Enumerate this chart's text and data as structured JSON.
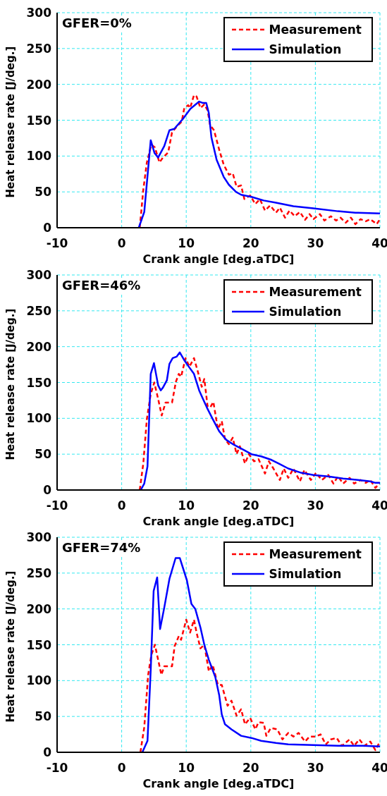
{
  "chart_data": [
    {
      "type": "line",
      "xlabel": "Crank angle [deg.aTDC]",
      "ylabel": "Heat release rate [J/deg.]",
      "xlim": [
        -10,
        40
      ],
      "xticks": [
        -10,
        0,
        10,
        20,
        30,
        40
      ],
      "ylim": [
        0,
        300
      ],
      "yticks": [
        0,
        50,
        100,
        150,
        200,
        250,
        300
      ],
      "grid": true,
      "legend": "top right",
      "annotations": [
        "GFER=0%"
      ],
      "series": [
        {
          "name": "Measurement",
          "color": "#ff0000",
          "line_style": "dashed",
          "x": [
            2.8,
            3.35,
            3.9,
            4.6,
            5.15,
            5.85,
            6.4,
            7.2,
            7.8,
            8.5,
            9.3,
            9.7,
            10.3,
            10.6,
            11.2,
            11.6,
            12.2,
            12.8,
            13.3,
            13.7,
            14.3,
            15.1,
            15.8,
            16.6,
            17.2,
            17.8,
            18.5,
            19.0,
            19.9,
            20.7,
            21.4,
            22.2,
            23.0,
            23.9,
            24.5,
            25.3,
            26.0,
            26.8,
            27.6,
            28.4,
            29.1,
            29.7,
            30.7,
            31.4,
            32.4,
            33.2,
            33.9,
            34.7,
            35.5,
            36.2,
            37,
            37.8,
            38.5,
            39.5,
            40
          ],
          "values": [
            0,
            53,
            91,
            116,
            112,
            91,
            98,
            105,
            133,
            141,
            148,
            167,
            171,
            167,
            185,
            183,
            167,
            172,
            164,
            143,
            136,
            109,
            88,
            74,
            76,
            57,
            59,
            40,
            45,
            33,
            40,
            24,
            31,
            21,
            28,
            14,
            24,
            16,
            22,
            11,
            19,
            12,
            19,
            10,
            16,
            10,
            14,
            7,
            14,
            5,
            12,
            9,
            12,
            5,
            12
          ]
        },
        {
          "name": "Simulation",
          "color": "#0000ff",
          "line_style": "solid",
          "x": [
            2.65,
            3.5,
            4.5,
            5.1,
            5.65,
            6.6,
            7.4,
            8.15,
            9.5,
            10.65,
            12,
            12.6,
            13.1,
            13.5,
            13.9,
            14.7,
            15.8,
            16.6,
            17.7,
            18.5,
            20.1,
            22,
            23.9,
            26.6,
            29.7,
            33.5,
            36.2,
            40
          ],
          "values": [
            0,
            22,
            122,
            104,
            98,
            114,
            136,
            138,
            152,
            166,
            176,
            174,
            174,
            160,
            126,
            95,
            71,
            60,
            50,
            46,
            43,
            38,
            35,
            30,
            27,
            23,
            21,
            20
          ]
        }
      ]
    },
    {
      "type": "line",
      "xlabel": "Crank angle [deg.aTDC]",
      "ylabel": "Heat release rate [J/deg.]",
      "xlim": [
        -10,
        40
      ],
      "xticks": [
        -10,
        0,
        10,
        20,
        30,
        40
      ],
      "ylim": [
        0,
        300
      ],
      "yticks": [
        0,
        50,
        100,
        150,
        200,
        250,
        300
      ],
      "grid": true,
      "legend": "top right",
      "annotations": [
        "GFER=46%"
      ],
      "series": [
        {
          "name": "Measurement",
          "color": "#ff0000",
          "line_style": "dashed",
          "x": [
            2.8,
            3.35,
            3.9,
            4.5,
            5.05,
            5.65,
            6.2,
            6.8,
            7.8,
            8.4,
            8.85,
            9.2,
            9.9,
            10.5,
            11.2,
            11.8,
            12.4,
            12.8,
            13.3,
            13.7,
            14.2,
            14.9,
            15.5,
            16.0,
            16.6,
            17.2,
            17.8,
            18.3,
            19.1,
            19.7,
            20.5,
            21.2,
            22.2,
            22.8,
            23.5,
            24.5,
            25.1,
            25.8,
            26.6,
            27.6,
            28.3,
            29.3,
            30.1,
            31,
            32,
            32.8,
            33.5,
            34.3,
            35.3,
            36,
            37,
            37.8,
            38.5,
            39.3,
            40
          ],
          "values": [
            0,
            37,
            99,
            134,
            150,
            127,
            104,
            122,
            122,
            151,
            162,
            158,
            184,
            172,
            184,
            165,
            144,
            155,
            117,
            115,
            123,
            85,
            96,
            71,
            64,
            73,
            50,
            61,
            37,
            50,
            40,
            43,
            23,
            40,
            30,
            14,
            30,
            17,
            30,
            12,
            28,
            14,
            24,
            14,
            21,
            9,
            19,
            9,
            17,
            9,
            14,
            10,
            14,
            3,
            10
          ]
        },
        {
          "name": "Simulation",
          "color": "#0000ff",
          "line_style": "solid",
          "x": [
            2.95,
            3.5,
            4.0,
            4.5,
            5.0,
            5.4,
            5.65,
            6.05,
            6.4,
            7.0,
            7.4,
            7.9,
            8.5,
            9.0,
            9.7,
            10.4,
            11.2,
            12.0,
            12.7,
            13.2,
            14.1,
            15.1,
            16.2,
            17.4,
            18.9,
            20.1,
            21.6,
            23.2,
            24.3,
            25.8,
            27.8,
            29.7,
            32,
            34.3,
            36.6,
            38.5,
            39.3,
            40
          ],
          "values": [
            0,
            9,
            33,
            162,
            177,
            158,
            146,
            139,
            143,
            153,
            176,
            184,
            186,
            192,
            181,
            172,
            162,
            139,
            125,
            115,
            99,
            82,
            70,
            63,
            56,
            50,
            47,
            42,
            37,
            30,
            24,
            21,
            19,
            16,
            14,
            12,
            10,
            10
          ]
        }
      ]
    },
    {
      "type": "line",
      "xlabel": "Crank angle [deg.aTDC]",
      "ylabel": "Heat release rate [J/deg.]",
      "xlim": [
        -10,
        40
      ],
      "xticks": [
        -10,
        0,
        10,
        20,
        30,
        40
      ],
      "ylim": [
        0,
        300
      ],
      "yticks": [
        0,
        50,
        100,
        150,
        200,
        250,
        300
      ],
      "grid": true,
      "legend": "top right",
      "annotations": [
        "GFER=74%"
      ],
      "series": [
        {
          "name": "Measurement",
          "color": "#ff0000",
          "line_style": "dashed",
          "x": [
            2.9,
            3.5,
            4.1,
            4.6,
            5.15,
            5.65,
            6.15,
            6.6,
            7.8,
            8.2,
            8.85,
            9.2,
            10,
            10.6,
            11.2,
            11.6,
            12.2,
            12.8,
            13.5,
            14.1,
            14.9,
            15.5,
            16.4,
            17.0,
            17.8,
            18.5,
            19.1,
            19.9,
            20.7,
            21.2,
            22,
            22.4,
            23.1,
            24.1,
            24.9,
            25.8,
            26.6,
            27.4,
            28.4,
            29.1,
            30.1,
            30.8,
            31.6,
            32.4,
            33.3,
            34.1,
            35.3,
            36.0,
            36.8,
            37.6,
            38.5,
            39.3,
            40
          ],
          "values": [
            0,
            35,
            108,
            136,
            150,
            129,
            108,
            120,
            120,
            148,
            162,
            157,
            185,
            167,
            185,
            167,
            145,
            150,
            113,
            122,
            94,
            94,
            65,
            72,
            51,
            60,
            39,
            48,
            32,
            42,
            41,
            23,
            34,
            32,
            18,
            27,
            22,
            27,
            15,
            22,
            22,
            25,
            11,
            18,
            20,
            9,
            18,
            9,
            18,
            9,
            15,
            3,
            15
          ]
        },
        {
          "name": "Simulation",
          "color": "#0000ff",
          "line_style": "solid",
          "x": [
            3.2,
            4,
            4.5,
            4.95,
            5.5,
            5.95,
            6.6,
            7.4,
            8.35,
            9.0,
            10.1,
            10.8,
            11.4,
            12.2,
            12.8,
            13.5,
            14.5,
            15.1,
            15.5,
            16.0,
            17.0,
            18.5,
            20.1,
            21.6,
            23.9,
            25.8,
            29.7,
            33.5,
            37.4,
            40
          ],
          "values": [
            0,
            16,
            115,
            225,
            244,
            172,
            202,
            242,
            271,
            271,
            240,
            207,
            200,
            174,
            150,
            129,
            105,
            80,
            53,
            39,
            32,
            23,
            20,
            16,
            13,
            11,
            10,
            9,
            9,
            8
          ]
        }
      ]
    }
  ]
}
